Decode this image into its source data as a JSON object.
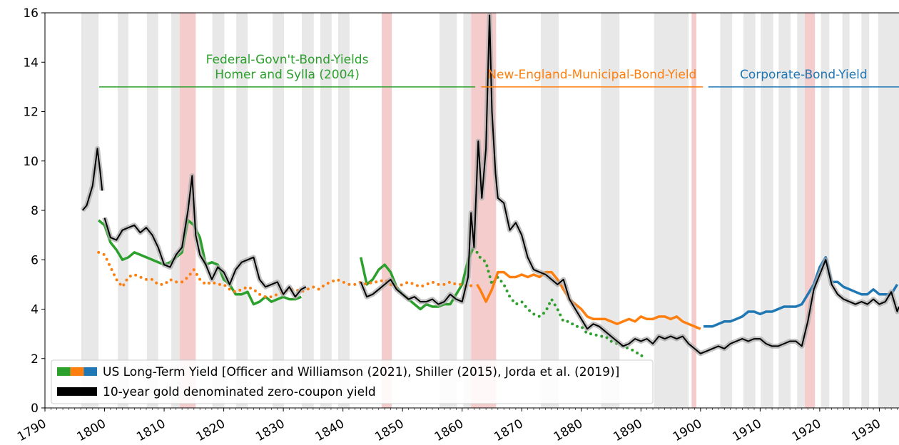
{
  "chart_data": {
    "type": "line",
    "xlim": [
      1790,
      1933.3
    ],
    "ylim": [
      0,
      16
    ],
    "xticks": [
      1790,
      1800,
      1810,
      1820,
      1830,
      1840,
      1850,
      1860,
      1870,
      1880,
      1890,
      1900,
      1910,
      1920,
      1930
    ],
    "yticks": [
      0,
      2,
      4,
      6,
      8,
      10,
      12,
      14,
      16
    ],
    "legend": "lower left",
    "shaded_periods": [
      {
        "start": 1796.1,
        "end": 1799.0,
        "color": "#e8e8e8"
      },
      {
        "start": 1802.2,
        "end": 1804.0,
        "color": "#e8e8e8"
      },
      {
        "start": 1807.1,
        "end": 1809.0,
        "color": "#e8e8e8"
      },
      {
        "start": 1811.2,
        "end": 1812.6,
        "color": "#e8e8e8"
      },
      {
        "start": 1812.6,
        "end": 1815.3,
        "color": "#f5cccc"
      },
      {
        "start": 1818.1,
        "end": 1820.1,
        "color": "#e8e8e8"
      },
      {
        "start": 1822.1,
        "end": 1824.0,
        "color": "#e8e8e8"
      },
      {
        "start": 1828.2,
        "end": 1830.1,
        "color": "#e8e8e8"
      },
      {
        "start": 1833.1,
        "end": 1835.1,
        "color": "#e8e8e8"
      },
      {
        "start": 1836.2,
        "end": 1838.1,
        "color": "#e8e8e8"
      },
      {
        "start": 1839.2,
        "end": 1841.1,
        "color": "#e8e8e8"
      },
      {
        "start": 1846.5,
        "end": 1848.2,
        "color": "#f5cccc"
      },
      {
        "start": 1856.2,
        "end": 1859.1,
        "color": "#e8e8e8"
      },
      {
        "start": 1860.2,
        "end": 1861.5,
        "color": "#e8e8e8"
      },
      {
        "start": 1861.5,
        "end": 1865.7,
        "color": "#f5cccc"
      },
      {
        "start": 1873.2,
        "end": 1876.2,
        "color": "#e8e8e8"
      },
      {
        "start": 1883.3,
        "end": 1886.4,
        "color": "#e8e8e8"
      },
      {
        "start": 1892.2,
        "end": 1898.0,
        "color": "#e8e8e8"
      },
      {
        "start": 1898.5,
        "end": 1899.3,
        "color": "#f5cccc"
      },
      {
        "start": 1903.3,
        "end": 1905.3,
        "color": "#e8e8e8"
      },
      {
        "start": 1907.2,
        "end": 1909.2,
        "color": "#e8e8e8"
      },
      {
        "start": 1910.1,
        "end": 1912.2,
        "color": "#e8e8e8"
      },
      {
        "start": 1913.1,
        "end": 1915.1,
        "color": "#e8e8e8"
      },
      {
        "start": 1916.2,
        "end": 1917.5,
        "color": "#e8e8e8"
      },
      {
        "start": 1917.5,
        "end": 1919.2,
        "color": "#f5cccc"
      },
      {
        "start": 1920.2,
        "end": 1921.6,
        "color": "#e8e8e8"
      },
      {
        "start": 1923.8,
        "end": 1925.0,
        "color": "#e8e8e8"
      },
      {
        "start": 1927.0,
        "end": 1928.3,
        "color": "#e8e8e8"
      },
      {
        "start": 1929.8,
        "end": 1933.3,
        "color": "#e8e8e8"
      }
    ],
    "annotations": [
      {
        "lines": [
          "Federal-Govn't-Bond-Yields",
          "Homer and Sylla (2004)"
        ],
        "color": "#2ca02c",
        "x": [
          1799.1,
          1862.2
        ],
        "y": 13
      },
      {
        "lines": [
          "New-England-Municipal-Bond-Yield"
        ],
        "color": "#ff7f0e",
        "x": [
          1863.2,
          1900.4
        ],
        "y": 13
      },
      {
        "lines": [
          "Corporate-Bond-Yield"
        ],
        "color": "#1f77b4",
        "x": [
          1901.3,
          1933.3
        ],
        "y": 13
      }
    ],
    "series": [
      {
        "name": "US Long-Term Yield [Officer and Williamson (2021), Shiller (2015), Jorda et al. (2019)]",
        "legend_colors": [
          "#2ca02c",
          "#ff7f0e",
          "#1f77b4"
        ],
        "segments": [
          {
            "color": "#2ca02c",
            "style": "solid",
            "x": [
              1799,
              1800,
              1801,
              1802,
              1803,
              1804,
              1805,
              1806,
              1807,
              1808,
              1809,
              1810,
              1811,
              1812,
              1813,
              1814,
              1815,
              1816,
              1817,
              1818,
              1819,
              1820,
              1821,
              1822,
              1823,
              1824,
              1825,
              1826,
              1827,
              1828,
              1829,
              1830,
              1831,
              1832,
              1833,
              1838,
              1843,
              1844,
              1845,
              1846,
              1847,
              1848,
              1849,
              1850,
              1851,
              1852,
              1853,
              1854,
              1855,
              1856,
              1857,
              1858,
              1859,
              1860,
              1861,
              1861.9
            ],
            "values": [
              7.6,
              7.4,
              6.7,
              6.4,
              6.0,
              6.1,
              6.3,
              6.2,
              6.1,
              6.0,
              5.9,
              5.8,
              5.9,
              6.1,
              6.3,
              7.6,
              7.4,
              6.9,
              5.8,
              5.9,
              5.8,
              5.2,
              5.0,
              4.6,
              4.6,
              4.7,
              4.2,
              4.3,
              4.5,
              4.3,
              4.4,
              4.5,
              4.4,
              4.4,
              4.5,
              null,
              6.1,
              5.0,
              5.2,
              5.6,
              5.8,
              5.5,
              4.9,
              4.6,
              4.4,
              4.2,
              4.0,
              4.2,
              4.1,
              4.1,
              4.2,
              4.2,
              4.6,
              5.0,
              6.0,
              6.5
            ]
          },
          {
            "color": "#2ca02c",
            "style": "dotted",
            "x": [
              1862.5,
              1863,
              1864,
              1865,
              1866,
              1867,
              1868,
              1869,
              1870,
              1871,
              1872,
              1873,
              1874,
              1875,
              1876,
              1877,
              1878,
              1879,
              1880,
              1881,
              1882,
              1883,
              1884,
              1885,
              1886,
              1887,
              1888,
              1889,
              1890,
              1891
            ],
            "values": [
              6.3,
              6.1,
              5.9,
              5.0,
              5.3,
              5.0,
              4.5,
              4.2,
              4.3,
              4.0,
              3.8,
              3.7,
              3.9,
              4.4,
              4.0,
              3.5,
              3.5,
              3.3,
              3.3,
              3.0,
              3.0,
              2.9,
              2.9,
              2.7,
              2.6,
              2.5,
              2.4,
              2.3,
              2.1,
              2.2
            ]
          },
          {
            "color": "#ff7f0e",
            "style": "dotted",
            "x": [
              1799,
              1800,
              1801,
              1802,
              1803,
              1804,
              1805,
              1806,
              1807,
              1808,
              1809,
              1810,
              1811,
              1812,
              1813,
              1814,
              1815,
              1816,
              1817,
              1818,
              1819,
              1820,
              1821,
              1822,
              1823,
              1824,
              1825,
              1826,
              1827,
              1828,
              1829,
              1830,
              1831,
              1832,
              1833,
              1834,
              1835,
              1836,
              1837,
              1838,
              1839,
              1840,
              1841,
              1842,
              1843,
              1844,
              1845,
              1846,
              1847,
              1848,
              1849,
              1850,
              1851,
              1852,
              1853,
              1854,
              1855,
              1856,
              1857,
              1858,
              1859,
              1860,
              1861,
              1862
            ],
            "values": [
              6.3,
              6.2,
              5.7,
              5.2,
              4.9,
              5.3,
              5.4,
              5.3,
              5.2,
              5.2,
              5.0,
              5.0,
              5.2,
              5.1,
              5.1,
              5.3,
              5.6,
              5.2,
              5.0,
              5.1,
              5.0,
              5.0,
              4.8,
              4.7,
              4.8,
              4.9,
              4.8,
              4.6,
              4.5,
              4.5,
              4.6,
              4.7,
              4.8,
              4.8,
              4.7,
              4.8,
              4.9,
              4.8,
              5.0,
              5.1,
              5.2,
              5.1,
              5.0,
              5.0,
              5.1,
              5.0,
              5.1,
              5.1,
              5.2,
              5.0,
              4.9,
              5.0,
              5.1,
              5.0,
              4.9,
              5.0,
              5.1,
              5.0,
              5.0,
              5.1,
              5.0,
              5.0,
              4.9,
              5.0
            ]
          },
          {
            "color": "#ff7f0e",
            "style": "solid",
            "x": [
              1862.5,
              1863,
              1864,
              1865,
              1866,
              1867,
              1868,
              1869,
              1870,
              1871,
              1872,
              1873,
              1874,
              1875,
              1876,
              1877,
              1878,
              1879,
              1880,
              1881,
              1882,
              1883,
              1884,
              1885,
              1886,
              1887,
              1888,
              1889,
              1890,
              1891,
              1892,
              1893,
              1894,
              1895,
              1896,
              1897,
              1898,
              1899,
              1900
            ],
            "values": [
              5.0,
              4.8,
              4.3,
              4.8,
              5.5,
              5.5,
              5.3,
              5.3,
              5.4,
              5.3,
              5.4,
              5.3,
              5.5,
              5.5,
              5.2,
              4.8,
              4.4,
              4.2,
              4.0,
              3.7,
              3.6,
              3.6,
              3.6,
              3.5,
              3.4,
              3.5,
              3.6,
              3.5,
              3.7,
              3.6,
              3.6,
              3.7,
              3.7,
              3.6,
              3.7,
              3.5,
              3.4,
              3.3,
              3.2
            ]
          },
          {
            "color": "#1f77b4",
            "style": "solid",
            "x": [
              1900.5,
              1901,
              1902,
              1903,
              1904,
              1905,
              1906,
              1907,
              1908,
              1909,
              1910,
              1911,
              1912,
              1913,
              1914,
              1915,
              1916,
              1917,
              1918,
              1919,
              1920,
              1921,
              1922,
              1923,
              1924,
              1925,
              1926,
              1927,
              1928,
              1929,
              1930,
              1931,
              1932,
              1933
            ],
            "values": [
              3.3,
              3.3,
              3.3,
              3.4,
              3.5,
              3.5,
              3.6,
              3.7,
              3.9,
              3.9,
              3.8,
              3.9,
              3.9,
              4.0,
              4.1,
              4.1,
              4.1,
              4.2,
              4.6,
              5.0,
              5.7,
              6.1,
              5.1,
              5.1,
              4.9,
              4.8,
              4.7,
              4.6,
              4.6,
              4.8,
              4.6,
              4.6,
              4.6,
              5.0
            ]
          }
        ]
      },
      {
        "name": "10-year gold denominated zero-coupon yield",
        "color": "#000000",
        "x": [
          1796.3,
          1797,
          1798,
          1798.8,
          1799.3,
          1799.6,
          1799.8,
          1800,
          1801,
          1802,
          1803,
          1804,
          1805,
          1806,
          1807,
          1808,
          1809,
          1810,
          1811,
          1812,
          1813,
          1814,
          1814.7,
          1815.3,
          1816,
          1817,
          1818,
          1819,
          1820,
          1821,
          1822,
          1823,
          1824,
          1825,
          1826,
          1827,
          1828,
          1829,
          1830,
          1831,
          1832,
          1833,
          1833.8,
          1838,
          1843,
          1844,
          1845,
          1846,
          1847,
          1848,
          1849,
          1850,
          1851,
          1852,
          1853,
          1854,
          1855,
          1856,
          1857,
          1858,
          1859,
          1860,
          1861,
          1861.5,
          1862,
          1862.7,
          1863.3,
          1864,
          1864.6,
          1865,
          1865.6,
          1866,
          1867,
          1868,
          1869,
          1870,
          1871,
          1872,
          1873,
          1874,
          1875,
          1876,
          1877,
          1878,
          1879,
          1880,
          1881,
          1882,
          1883,
          1884,
          1885,
          1886,
          1887,
          1888,
          1889,
          1890,
          1891,
          1892,
          1893,
          1894,
          1895,
          1896,
          1897,
          1898,
          1899,
          1900,
          1901,
          1902,
          1903,
          1904,
          1905,
          1906,
          1907,
          1908,
          1909,
          1910,
          1911,
          1912,
          1913,
          1914,
          1915,
          1916,
          1917,
          1918,
          1919,
          1920,
          1921,
          1922,
          1923,
          1924,
          1925,
          1926,
          1927,
          1928,
          1929,
          1930,
          1931,
          1932,
          1933,
          1933.3
        ],
        "values": [
          8.0,
          8.2,
          9.0,
          10.5,
          9.5,
          8.8,
          null,
          7.7,
          6.9,
          6.8,
          7.2,
          7.3,
          7.4,
          7.1,
          7.3,
          7.0,
          6.5,
          5.8,
          5.7,
          6.2,
          6.5,
          8.0,
          9.4,
          7.0,
          6.2,
          5.8,
          5.2,
          5.7,
          5.5,
          5.0,
          5.6,
          5.9,
          6.0,
          6.1,
          5.2,
          4.9,
          5.0,
          5.1,
          4.6,
          4.9,
          4.5,
          4.8,
          4.9,
          null,
          5.1,
          4.5,
          4.6,
          4.8,
          5.0,
          5.2,
          4.8,
          4.6,
          4.4,
          4.5,
          4.3,
          4.3,
          4.4,
          4.2,
          4.3,
          4.6,
          4.4,
          4.3,
          5.3,
          7.9,
          6.5,
          10.8,
          8.5,
          10.5,
          15.9,
          12.0,
          9.5,
          8.5,
          8.3,
          7.2,
          7.5,
          7.0,
          6.1,
          5.6,
          5.5,
          5.4,
          5.2,
          5.0,
          5.2,
          4.4,
          4.0,
          3.6,
          3.2,
          3.4,
          3.3,
          3.1,
          2.9,
          2.7,
          2.5,
          2.6,
          2.8,
          2.7,
          2.8,
          2.6,
          2.9,
          2.8,
          2.9,
          2.8,
          2.9,
          2.6,
          2.4,
          2.2,
          2.3,
          2.4,
          2.5,
          2.4,
          2.6,
          2.7,
          2.8,
          2.7,
          2.8,
          2.8,
          2.6,
          2.5,
          2.5,
          2.6,
          2.7,
          2.7,
          2.5,
          3.5,
          4.8,
          5.4,
          6.0,
          5.0,
          4.6,
          4.4,
          4.3,
          4.2,
          4.3,
          4.2,
          4.4,
          4.2,
          4.3,
          4.7,
          3.9,
          4.1
        ]
      }
    ]
  }
}
